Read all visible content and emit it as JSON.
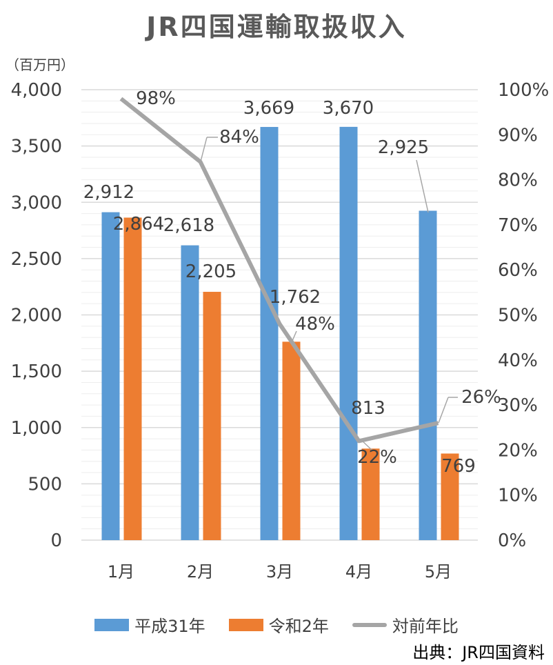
{
  "title": "JR四国運輸取扱収入",
  "unit_label": "（百万円）",
  "source": "出典：JR四国資料",
  "colors": {
    "series1": "#5B9BD5",
    "series2": "#ED7D31",
    "ratio": "#A5A5A5",
    "grid": "#D9D9D9"
  },
  "chart_data": {
    "type": "bar",
    "categories": [
      "1月",
      "2月",
      "3月",
      "4月",
      "5月"
    ],
    "series": [
      {
        "name": "平成31年",
        "values": [
          2912,
          2618,
          3669,
          3670,
          2925
        ],
        "labels": [
          "2,912",
          "2,618",
          "3,669",
          "3,670",
          "2,925"
        ]
      },
      {
        "name": "令和2年",
        "values": [
          2864,
          2205,
          1762,
          813,
          769
        ],
        "labels": [
          "2,864",
          "2,205",
          "1,762",
          "813",
          "769"
        ]
      }
    ],
    "line_series": {
      "name": "対前年比",
      "values": [
        98,
        84,
        48,
        22,
        26
      ],
      "labels": [
        "98%",
        "84%",
        "48%",
        "22%",
        "26%"
      ]
    },
    "ylim": [
      0,
      4000
    ],
    "yticks": [
      "0",
      "500",
      "1,000",
      "1,500",
      "2,000",
      "2,500",
      "3,000",
      "3,500",
      "4,000"
    ],
    "y2lim": [
      0,
      100
    ],
    "y2ticks": [
      "0%",
      "10%",
      "20%",
      "30%",
      "40%",
      "50%",
      "60%",
      "70%",
      "80%",
      "90%",
      "100%"
    ],
    "grid": true,
    "legend_position": "bottom"
  }
}
